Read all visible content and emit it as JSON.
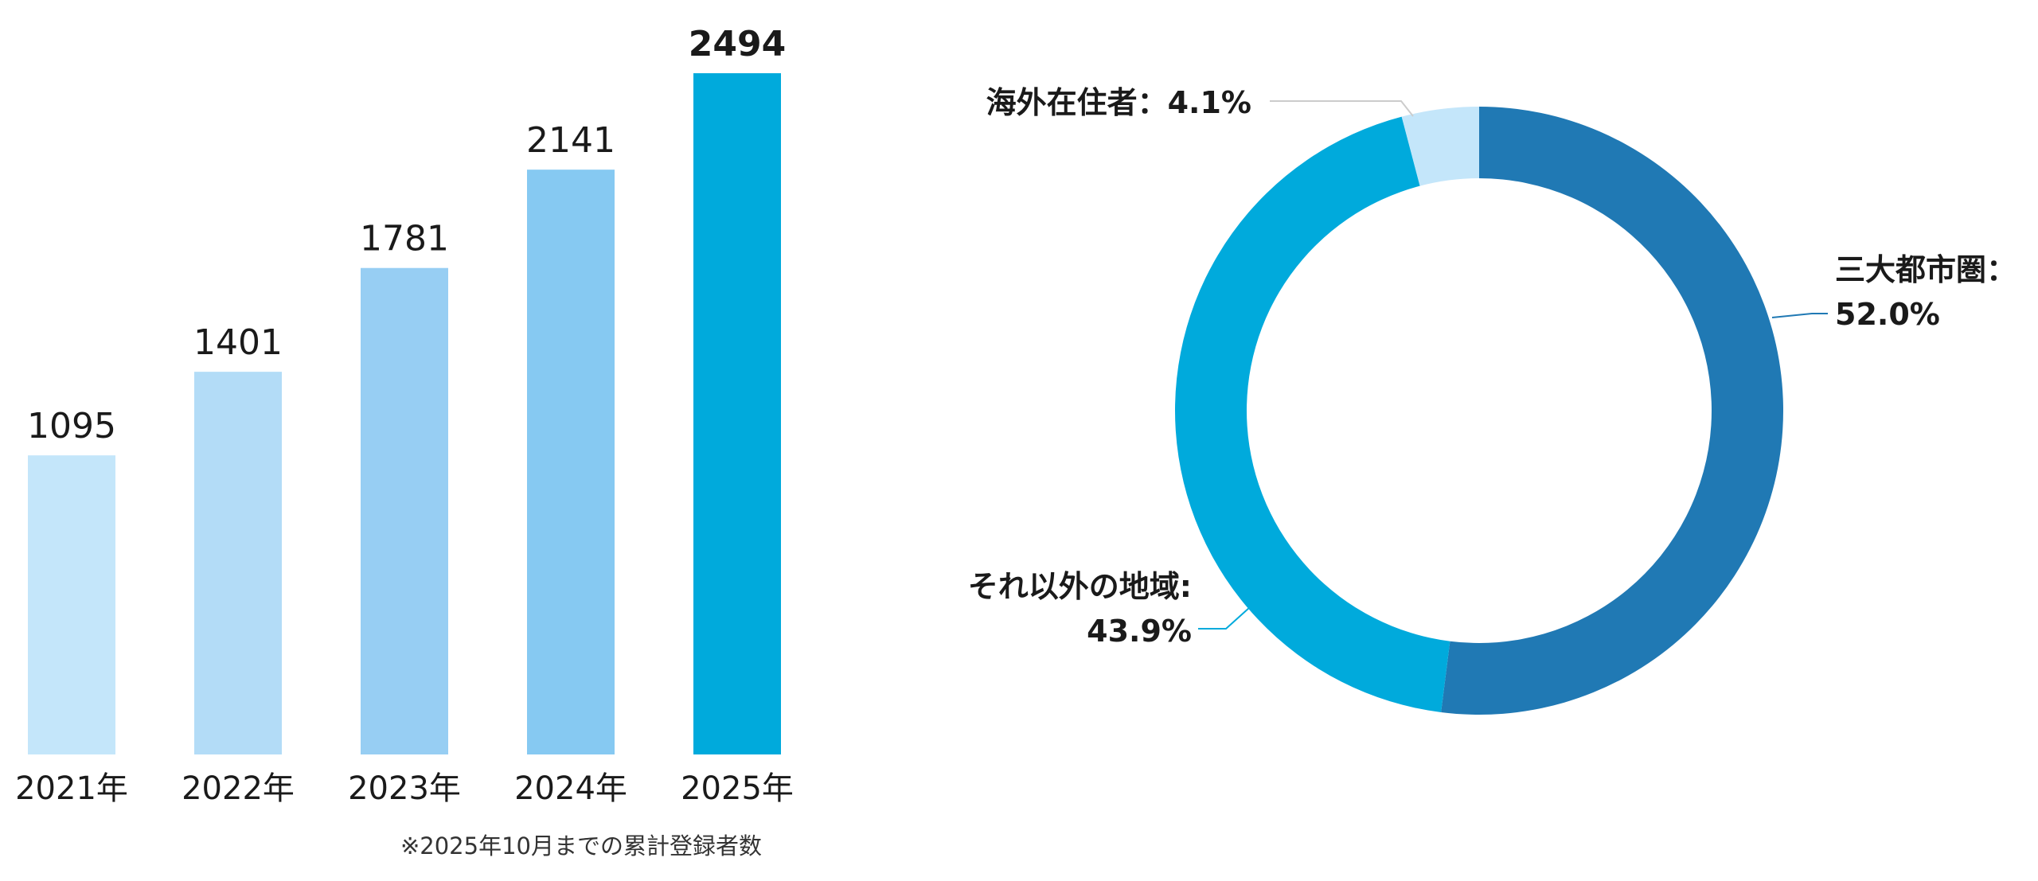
{
  "chart_data": [
    {
      "type": "bar",
      "categories": [
        "2021年",
        "2022年",
        "2023年",
        "2024年",
        "2025年"
      ],
      "values": [
        1095,
        1401,
        1781,
        2141,
        2494
      ],
      "value_labels": [
        "1095",
        "1401",
        "1781",
        "2141",
        "2494"
      ],
      "colors": [
        "#c4e6fa",
        "#b3dcf7",
        "#97cef3",
        "#86c9f2",
        "#00aadc"
      ],
      "ylim": [
        0,
        2700
      ],
      "grid": false,
      "note": "※2025年10月までの累計登録者数"
    },
    {
      "type": "pie",
      "donut": true,
      "slices": [
        {
          "label_lines": [
            "三大都市圏：",
            "52.0%"
          ],
          "value": 52.0,
          "color": "#2079b4"
        },
        {
          "label_lines": [
            "それ以外の地域:",
            "43.9%"
          ],
          "value": 43.9,
          "color": "#00aadc"
        },
        {
          "label_lines": [
            "海外在住者：4.1%"
          ],
          "value": 4.1,
          "color": "#c4e6fa"
        }
      ],
      "start_angle_deg": 0,
      "direction": "clockwise"
    }
  ]
}
